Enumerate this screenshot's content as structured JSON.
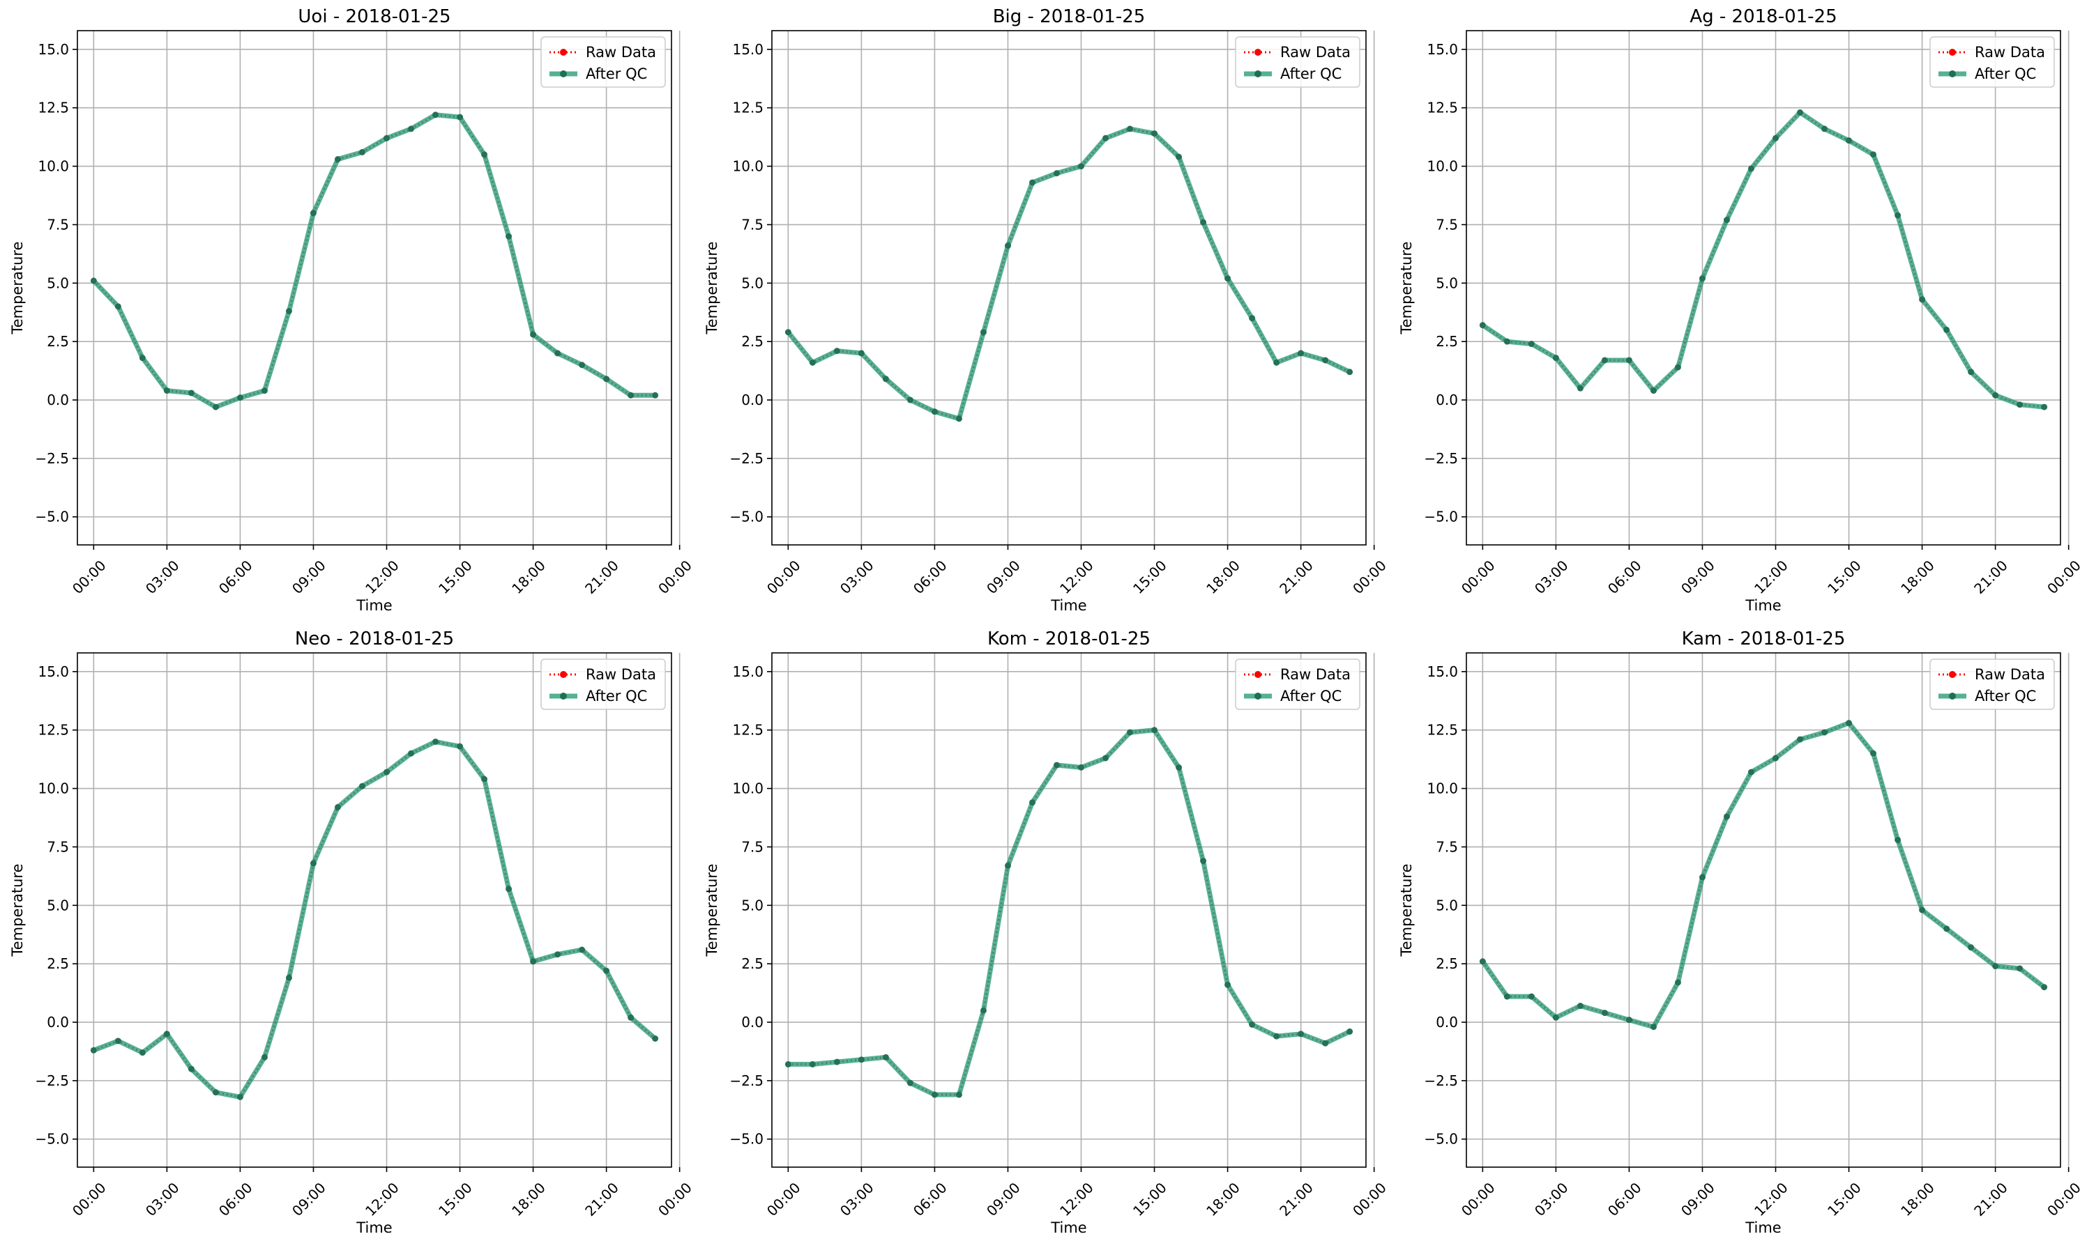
{
  "colors": {
    "raw": "#ff0000",
    "after_qc": "#2a9d78",
    "grid": "#b0b0b0",
    "axis": "#000000"
  },
  "chart_data": [
    {
      "type": "line",
      "title": "Uoi - 2018-01-25",
      "xlabel": "Time",
      "ylabel": "Temperature",
      "x": [
        "00:00",
        "01:00",
        "02:00",
        "03:00",
        "04:00",
        "05:00",
        "06:00",
        "07:00",
        "08:00",
        "09:00",
        "10:00",
        "11:00",
        "12:00",
        "13:00",
        "14:00",
        "15:00",
        "16:00",
        "17:00",
        "18:00",
        "19:00",
        "20:00",
        "21:00",
        "22:00",
        "23:00"
      ],
      "xticks": [
        "00:00",
        "03:00",
        "06:00",
        "09:00",
        "12:00",
        "15:00",
        "18:00",
        "21:00",
        "00:00"
      ],
      "yticks": [
        "−5.0",
        "−2.5",
        "0.0",
        "2.5",
        "5.0",
        "7.5",
        "10.0",
        "12.5",
        "15.0"
      ],
      "ylim": [
        -6.2,
        15.8
      ],
      "grid": true,
      "legend": "upper right",
      "series": [
        {
          "name": "Raw Data",
          "values": [
            5.1,
            4.0,
            1.8,
            0.4,
            0.3,
            -0.3,
            0.1,
            0.4,
            3.8,
            8.0,
            10.3,
            10.6,
            11.2,
            11.6,
            12.2,
            12.1,
            10.5,
            7.0,
            2.8,
            2.0,
            1.5,
            0.9,
            0.2,
            0.2
          ]
        },
        {
          "name": "After QC",
          "values": [
            5.1,
            4.0,
            1.8,
            0.4,
            0.3,
            -0.3,
            0.1,
            0.4,
            3.8,
            8.0,
            10.3,
            10.6,
            11.2,
            11.6,
            12.2,
            12.1,
            10.5,
            7.0,
            2.8,
            2.0,
            1.5,
            0.9,
            0.2,
            0.2
          ]
        }
      ]
    },
    {
      "type": "line",
      "title": "Big - 2018-01-25",
      "xlabel": "Time",
      "ylabel": "Temperature",
      "x": [
        "00:00",
        "01:00",
        "02:00",
        "03:00",
        "04:00",
        "05:00",
        "06:00",
        "07:00",
        "08:00",
        "09:00",
        "10:00",
        "11:00",
        "12:00",
        "13:00",
        "14:00",
        "15:00",
        "16:00",
        "17:00",
        "18:00",
        "19:00",
        "20:00",
        "21:00",
        "22:00",
        "23:00"
      ],
      "xticks": [
        "00:00",
        "03:00",
        "06:00",
        "09:00",
        "12:00",
        "15:00",
        "18:00",
        "21:00",
        "00:00"
      ],
      "yticks": [
        "−5.0",
        "−2.5",
        "0.0",
        "2.5",
        "5.0",
        "7.5",
        "10.0",
        "12.5",
        "15.0"
      ],
      "ylim": [
        -6.2,
        15.8
      ],
      "grid": true,
      "legend": "upper right",
      "series": [
        {
          "name": "Raw Data",
          "values": [
            2.9,
            1.6,
            2.1,
            2.0,
            0.9,
            0.0,
            -0.5,
            -0.8,
            2.9,
            6.6,
            9.3,
            9.7,
            10.0,
            11.2,
            11.6,
            11.4,
            10.4,
            7.6,
            5.2,
            3.5,
            1.6,
            2.0,
            1.7,
            1.2
          ]
        },
        {
          "name": "After QC",
          "values": [
            2.9,
            1.6,
            2.1,
            2.0,
            0.9,
            0.0,
            -0.5,
            -0.8,
            2.9,
            6.6,
            9.3,
            9.7,
            10.0,
            11.2,
            11.6,
            11.4,
            10.4,
            7.6,
            5.2,
            3.5,
            1.6,
            2.0,
            1.7,
            1.2
          ]
        }
      ]
    },
    {
      "type": "line",
      "title": "Ag - 2018-01-25",
      "xlabel": "Time",
      "ylabel": "Temperature",
      "x": [
        "00:00",
        "01:00",
        "02:00",
        "03:00",
        "04:00",
        "05:00",
        "06:00",
        "07:00",
        "08:00",
        "09:00",
        "10:00",
        "11:00",
        "12:00",
        "13:00",
        "14:00",
        "15:00",
        "16:00",
        "17:00",
        "18:00",
        "19:00",
        "20:00",
        "21:00",
        "22:00",
        "23:00"
      ],
      "xticks": [
        "00:00",
        "03:00",
        "06:00",
        "09:00",
        "12:00",
        "15:00",
        "18:00",
        "21:00",
        "00:00"
      ],
      "yticks": [
        "−5.0",
        "−2.5",
        "0.0",
        "2.5",
        "5.0",
        "7.5",
        "10.0",
        "12.5",
        "15.0"
      ],
      "ylim": [
        -6.2,
        15.8
      ],
      "grid": true,
      "legend": "upper right",
      "series": [
        {
          "name": "Raw Data",
          "values": [
            3.2,
            2.5,
            2.4,
            1.8,
            0.5,
            1.7,
            1.7,
            0.4,
            1.4,
            5.2,
            7.7,
            9.9,
            11.2,
            12.3,
            11.6,
            11.1,
            10.5,
            7.9,
            4.3,
            3.0,
            1.2,
            0.2,
            -0.2,
            -0.3
          ]
        },
        {
          "name": "After QC",
          "values": [
            3.2,
            2.5,
            2.4,
            1.8,
            0.5,
            1.7,
            1.7,
            0.4,
            1.4,
            5.2,
            7.7,
            9.9,
            11.2,
            12.3,
            11.6,
            11.1,
            10.5,
            7.9,
            4.3,
            3.0,
            1.2,
            0.2,
            -0.2,
            -0.3
          ]
        }
      ]
    },
    {
      "type": "line",
      "title": "Neo - 2018-01-25",
      "xlabel": "Time",
      "ylabel": "Temperature",
      "x": [
        "00:00",
        "01:00",
        "02:00",
        "03:00",
        "04:00",
        "05:00",
        "06:00",
        "07:00",
        "08:00",
        "09:00",
        "10:00",
        "11:00",
        "12:00",
        "13:00",
        "14:00",
        "15:00",
        "16:00",
        "17:00",
        "18:00",
        "19:00",
        "20:00",
        "21:00",
        "22:00",
        "23:00"
      ],
      "xticks": [
        "00:00",
        "03:00",
        "06:00",
        "09:00",
        "12:00",
        "15:00",
        "18:00",
        "21:00",
        "00:00"
      ],
      "yticks": [
        "−5.0",
        "−2.5",
        "0.0",
        "2.5",
        "5.0",
        "7.5",
        "10.0",
        "12.5",
        "15.0"
      ],
      "ylim": [
        -6.2,
        15.8
      ],
      "grid": true,
      "legend": "upper right",
      "series": [
        {
          "name": "Raw Data",
          "values": [
            -1.2,
            -0.8,
            -1.3,
            -0.5,
            -2.0,
            -3.0,
            -3.2,
            -1.5,
            1.9,
            6.8,
            9.2,
            10.1,
            10.7,
            11.5,
            12.0,
            11.8,
            10.4,
            5.7,
            2.6,
            2.9,
            3.1,
            2.2,
            0.2,
            -0.7
          ]
        },
        {
          "name": "After QC",
          "values": [
            -1.2,
            -0.8,
            -1.3,
            -0.5,
            -2.0,
            -3.0,
            -3.2,
            -1.5,
            1.9,
            6.8,
            9.2,
            10.1,
            10.7,
            11.5,
            12.0,
            11.8,
            10.4,
            5.7,
            2.6,
            2.9,
            3.1,
            2.2,
            0.2,
            -0.7
          ]
        }
      ]
    },
    {
      "type": "line",
      "title": "Kom - 2018-01-25",
      "xlabel": "Time",
      "ylabel": "Temperature",
      "x": [
        "00:00",
        "01:00",
        "02:00",
        "03:00",
        "04:00",
        "05:00",
        "06:00",
        "07:00",
        "08:00",
        "09:00",
        "10:00",
        "11:00",
        "12:00",
        "13:00",
        "14:00",
        "15:00",
        "16:00",
        "17:00",
        "18:00",
        "19:00",
        "20:00",
        "21:00",
        "22:00",
        "23:00"
      ],
      "xticks": [
        "00:00",
        "03:00",
        "06:00",
        "09:00",
        "12:00",
        "15:00",
        "18:00",
        "21:00",
        "00:00"
      ],
      "yticks": [
        "−5.0",
        "−2.5",
        "0.0",
        "2.5",
        "5.0",
        "7.5",
        "10.0",
        "12.5",
        "15.0"
      ],
      "ylim": [
        -6.2,
        15.8
      ],
      "grid": true,
      "legend": "upper right",
      "series": [
        {
          "name": "Raw Data",
          "values": [
            -1.8,
            -1.8,
            -1.7,
            -1.6,
            -1.5,
            -2.6,
            -3.1,
            -3.1,
            0.5,
            6.7,
            9.4,
            11.0,
            10.9,
            11.3,
            12.4,
            12.5,
            10.9,
            6.9,
            1.6,
            -0.1,
            -0.6,
            -0.5,
            -0.9,
            -0.4
          ]
        },
        {
          "name": "After QC",
          "values": [
            -1.8,
            -1.8,
            -1.7,
            -1.6,
            -1.5,
            -2.6,
            -3.1,
            -3.1,
            0.5,
            6.7,
            9.4,
            11.0,
            10.9,
            11.3,
            12.4,
            12.5,
            10.9,
            6.9,
            1.6,
            -0.1,
            -0.6,
            -0.5,
            -0.9,
            -0.4
          ]
        }
      ]
    },
    {
      "type": "line",
      "title": "Kam - 2018-01-25",
      "xlabel": "Time",
      "ylabel": "Temperature",
      "x": [
        "00:00",
        "01:00",
        "02:00",
        "03:00",
        "04:00",
        "05:00",
        "06:00",
        "07:00",
        "08:00",
        "09:00",
        "10:00",
        "11:00",
        "12:00",
        "13:00",
        "14:00",
        "15:00",
        "16:00",
        "17:00",
        "18:00",
        "19:00",
        "20:00",
        "21:00",
        "22:00",
        "23:00"
      ],
      "xticks": [
        "00:00",
        "03:00",
        "06:00",
        "09:00",
        "12:00",
        "15:00",
        "18:00",
        "21:00",
        "00:00"
      ],
      "yticks": [
        "−5.0",
        "−2.5",
        "0.0",
        "2.5",
        "5.0",
        "7.5",
        "10.0",
        "12.5",
        "15.0"
      ],
      "ylim": [
        -6.2,
        15.8
      ],
      "grid": true,
      "legend": "upper right",
      "series": [
        {
          "name": "Raw Data",
          "values": [
            2.6,
            1.1,
            1.1,
            0.2,
            0.7,
            0.4,
            0.1,
            -0.2,
            1.7,
            6.2,
            8.8,
            10.7,
            11.3,
            12.1,
            12.4,
            12.8,
            11.5,
            7.8,
            4.8,
            4.0,
            3.2,
            2.4,
            2.3,
            1.5
          ]
        },
        {
          "name": "After QC",
          "values": [
            2.6,
            1.1,
            1.1,
            0.2,
            0.7,
            0.4,
            0.1,
            -0.2,
            1.7,
            6.2,
            8.8,
            10.7,
            11.3,
            12.1,
            12.4,
            12.8,
            11.5,
            7.8,
            4.8,
            4.0,
            3.2,
            2.4,
            2.3,
            1.5
          ]
        }
      ]
    }
  ]
}
